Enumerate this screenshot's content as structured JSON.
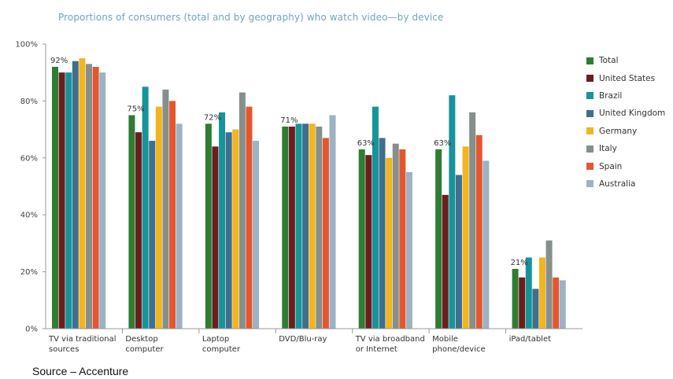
{
  "chart_data": {
    "type": "bar",
    "title": "Proportions of consumers (total and by geography) who watch video—by device",
    "source": "Source – Accenture",
    "categories": [
      [
        "TV via traditional",
        "sources"
      ],
      [
        "Desktop",
        "computer"
      ],
      [
        "Laptop",
        "computer"
      ],
      [
        "DVD/Blu-ray"
      ],
      [
        "TV via broadband",
        "or Internet"
      ],
      [
        "Mobile",
        "phone/device"
      ],
      [
        "iPad/tablet"
      ]
    ],
    "ylim": [
      0,
      100
    ],
    "yticks": [
      "0%",
      "20%",
      "40%",
      "60%",
      "80%",
      "100%"
    ],
    "ytick_values": [
      0,
      20,
      40,
      60,
      80,
      100
    ],
    "grid": false,
    "legend_position": "right",
    "series": [
      {
        "name": "Total",
        "color": "#2e7d32",
        "values": [
          92,
          75,
          72,
          71,
          63,
          63,
          21
        ]
      },
      {
        "name": "United States",
        "color": "#6b1e1e",
        "values": [
          90,
          69,
          64,
          71,
          61,
          47,
          18
        ]
      },
      {
        "name": "Brazil",
        "color": "#16949a",
        "values": [
          90,
          85,
          76,
          72,
          78,
          82,
          25
        ]
      },
      {
        "name": "United Kingdom",
        "color": "#3e6f8e",
        "values": [
          94,
          66,
          69,
          72,
          67,
          54,
          14
        ]
      },
      {
        "name": "Germany",
        "color": "#f2b51f",
        "values": [
          95,
          78,
          70,
          72,
          60,
          64,
          25
        ]
      },
      {
        "name": "Italy",
        "color": "#858f8c",
        "values": [
          93,
          84,
          83,
          71,
          65,
          76,
          31
        ]
      },
      {
        "name": "Spain",
        "color": "#e4572e",
        "values": [
          92,
          80,
          78,
          67,
          63,
          68,
          18
        ]
      },
      {
        "name": "Australia",
        "color": "#9bb3c4",
        "values": [
          90,
          72,
          66,
          75,
          55,
          59,
          17
        ]
      }
    ],
    "annotations": [
      {
        "category": 0,
        "series": 0,
        "text": "92%"
      },
      {
        "category": 1,
        "series": 0,
        "text": "75%"
      },
      {
        "category": 2,
        "series": 0,
        "text": "72%"
      },
      {
        "category": 3,
        "series": 0,
        "text": "71%"
      },
      {
        "category": 4,
        "series": 0,
        "text": "63%"
      },
      {
        "category": 5,
        "series": 0,
        "text": "63%"
      },
      {
        "category": 6,
        "series": 0,
        "text": "21%"
      }
    ]
  }
}
